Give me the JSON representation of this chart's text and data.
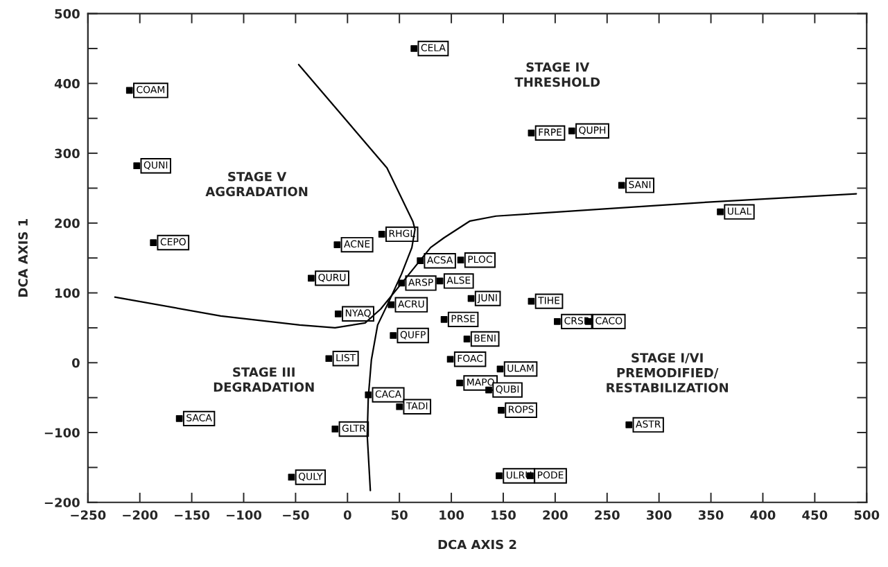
{
  "chart_data": {
    "type": "scatter",
    "xlabel": "DCA AXIS 2",
    "ylabel": "DCA AXIS 1",
    "xlim": [
      -250,
      500
    ],
    "xticks": [
      -250,
      -200,
      -150,
      -100,
      -50,
      0,
      50,
      100,
      150,
      200,
      250,
      300,
      350,
      400,
      450,
      500
    ],
    "ylim": [
      -200,
      500
    ],
    "yticks": [
      -200,
      {
        "value": -150,
        "label": null
      },
      -100,
      {
        "value": -50,
        "label": null
      },
      0,
      {
        "value": 50,
        "label": null
      },
      100,
      {
        "value": 150,
        "label": null
      },
      200,
      {
        "value": 250,
        "label": null
      },
      300,
      {
        "value": 350,
        "label": null
      },
      400,
      {
        "value": 450,
        "label": null
      },
      500
    ],
    "grid": false,
    "legend": false,
    "series": [
      {
        "color": "#000000",
        "marker": "square",
        "x": [
          -210,
          -203,
          -187,
          64,
          33,
          -10,
          177,
          216,
          264,
          359,
          70,
          109,
          -35,
          52,
          89,
          42,
          -9,
          119,
          93,
          44,
          115,
          -18,
          99,
          108,
          20,
          50,
          -162,
          -12,
          -54,
          177,
          202,
          232,
          147,
          136,
          148,
          271,
          146,
          176
        ],
        "values": [
          390,
          282,
          172,
          450,
          184,
          169,
          329,
          332,
          254,
          216,
          146,
          147,
          121,
          114,
          117,
          83,
          70,
          92,
          62,
          39,
          34,
          6,
          5,
          -29,
          -46,
          -63,
          -80,
          -95,
          -164,
          88,
          59,
          59,
          -9,
          -39,
          -68,
          -89,
          -162,
          -162
        ],
        "value_labels": [
          "COAM",
          "QUNI",
          "CEPO",
          "CELA",
          "RHGL",
          "ACNE",
          "FRPE",
          "QUPH",
          "SANI",
          "ULAL",
          "ACSA",
          "PLOC",
          "QURU",
          "ARSP",
          "ALSE",
          "ACRU",
          "NYAQ",
          "JUNI",
          "PRSE",
          "QUFP",
          "BENI",
          "LIST",
          "FOAC",
          "MAPO",
          "CACA",
          "TADI",
          "SACA",
          "GLTR",
          "QULY",
          "TIHE",
          "CRSP",
          "CACO",
          "ULAM",
          "QUBI",
          "ROPS",
          "ASTR",
          "ULRU",
          "PODE"
        ]
      },
      {
        "type": "line",
        "color": "#000000",
        "x": [
          -47,
          38,
          63,
          65,
          62,
          52,
          40,
          29,
          23,
          20,
          19,
          22
        ],
        "values": [
          427,
          279,
          202,
          191,
          165,
          127,
          88,
          54,
          4,
          -50,
          -104,
          -183
        ]
      },
      {
        "type": "line",
        "color": "#000000",
        "x": [
          -224,
          -122,
          -46,
          -12,
          17,
          32,
          55,
          80,
          93,
          118,
          143,
          245,
          347,
          490
        ],
        "values": [
          94,
          67,
          54,
          50,
          57,
          77,
          119,
          165,
          179,
          203,
          210,
          220,
          230,
          242
        ]
      }
    ],
    "annotations": [
      "STAGE V\nAGGRADATION",
      "STAGE IV\nTHRESHOLD",
      "STAGE III\nDEGRADATION",
      "STAGE I/VI\nPREMODIFIED/\nRESTABILIZATION"
    ]
  }
}
